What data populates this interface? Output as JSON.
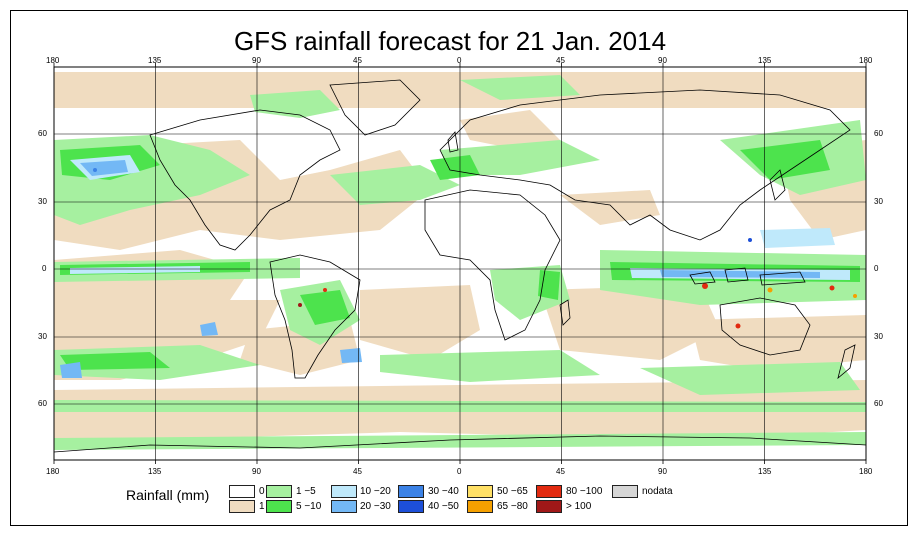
{
  "title": "GFS rainfall forecast for 21 Jan. 2014",
  "lon_ticks": [
    "180",
    "135",
    "90",
    "45",
    "0",
    "45",
    "90",
    "135",
    "180"
  ],
  "lat_ticks": [
    "60",
    "30",
    "0",
    "30",
    "60"
  ],
  "legend": {
    "title": "Rainfall (mm)",
    "classes": [
      {
        "label": "0",
        "color": "#ffffff"
      },
      {
        "label": "1",
        "color": "#f0dcc0"
      },
      {
        "label": "1 −5",
        "color": "#a6f0a0"
      },
      {
        "label": "5 −10",
        "color": "#4de34d"
      },
      {
        "label": "10 −20",
        "color": "#bfe9fb"
      },
      {
        "label": "20 −30",
        "color": "#73b8f5"
      },
      {
        "label": "30 −40",
        "color": "#3b82e6"
      },
      {
        "label": "40 −50",
        "color": "#1d4fd8"
      },
      {
        "label": "50 −65",
        "color": "#ffe066"
      },
      {
        "label": "65 −80",
        "color": "#f5a000"
      },
      {
        "label": "80 −100",
        "color": "#e22a10"
      },
      {
        "label": "> 100",
        "color": "#a01818"
      },
      {
        "label": "nodata",
        "color": "#d6d6d6"
      }
    ]
  }
}
